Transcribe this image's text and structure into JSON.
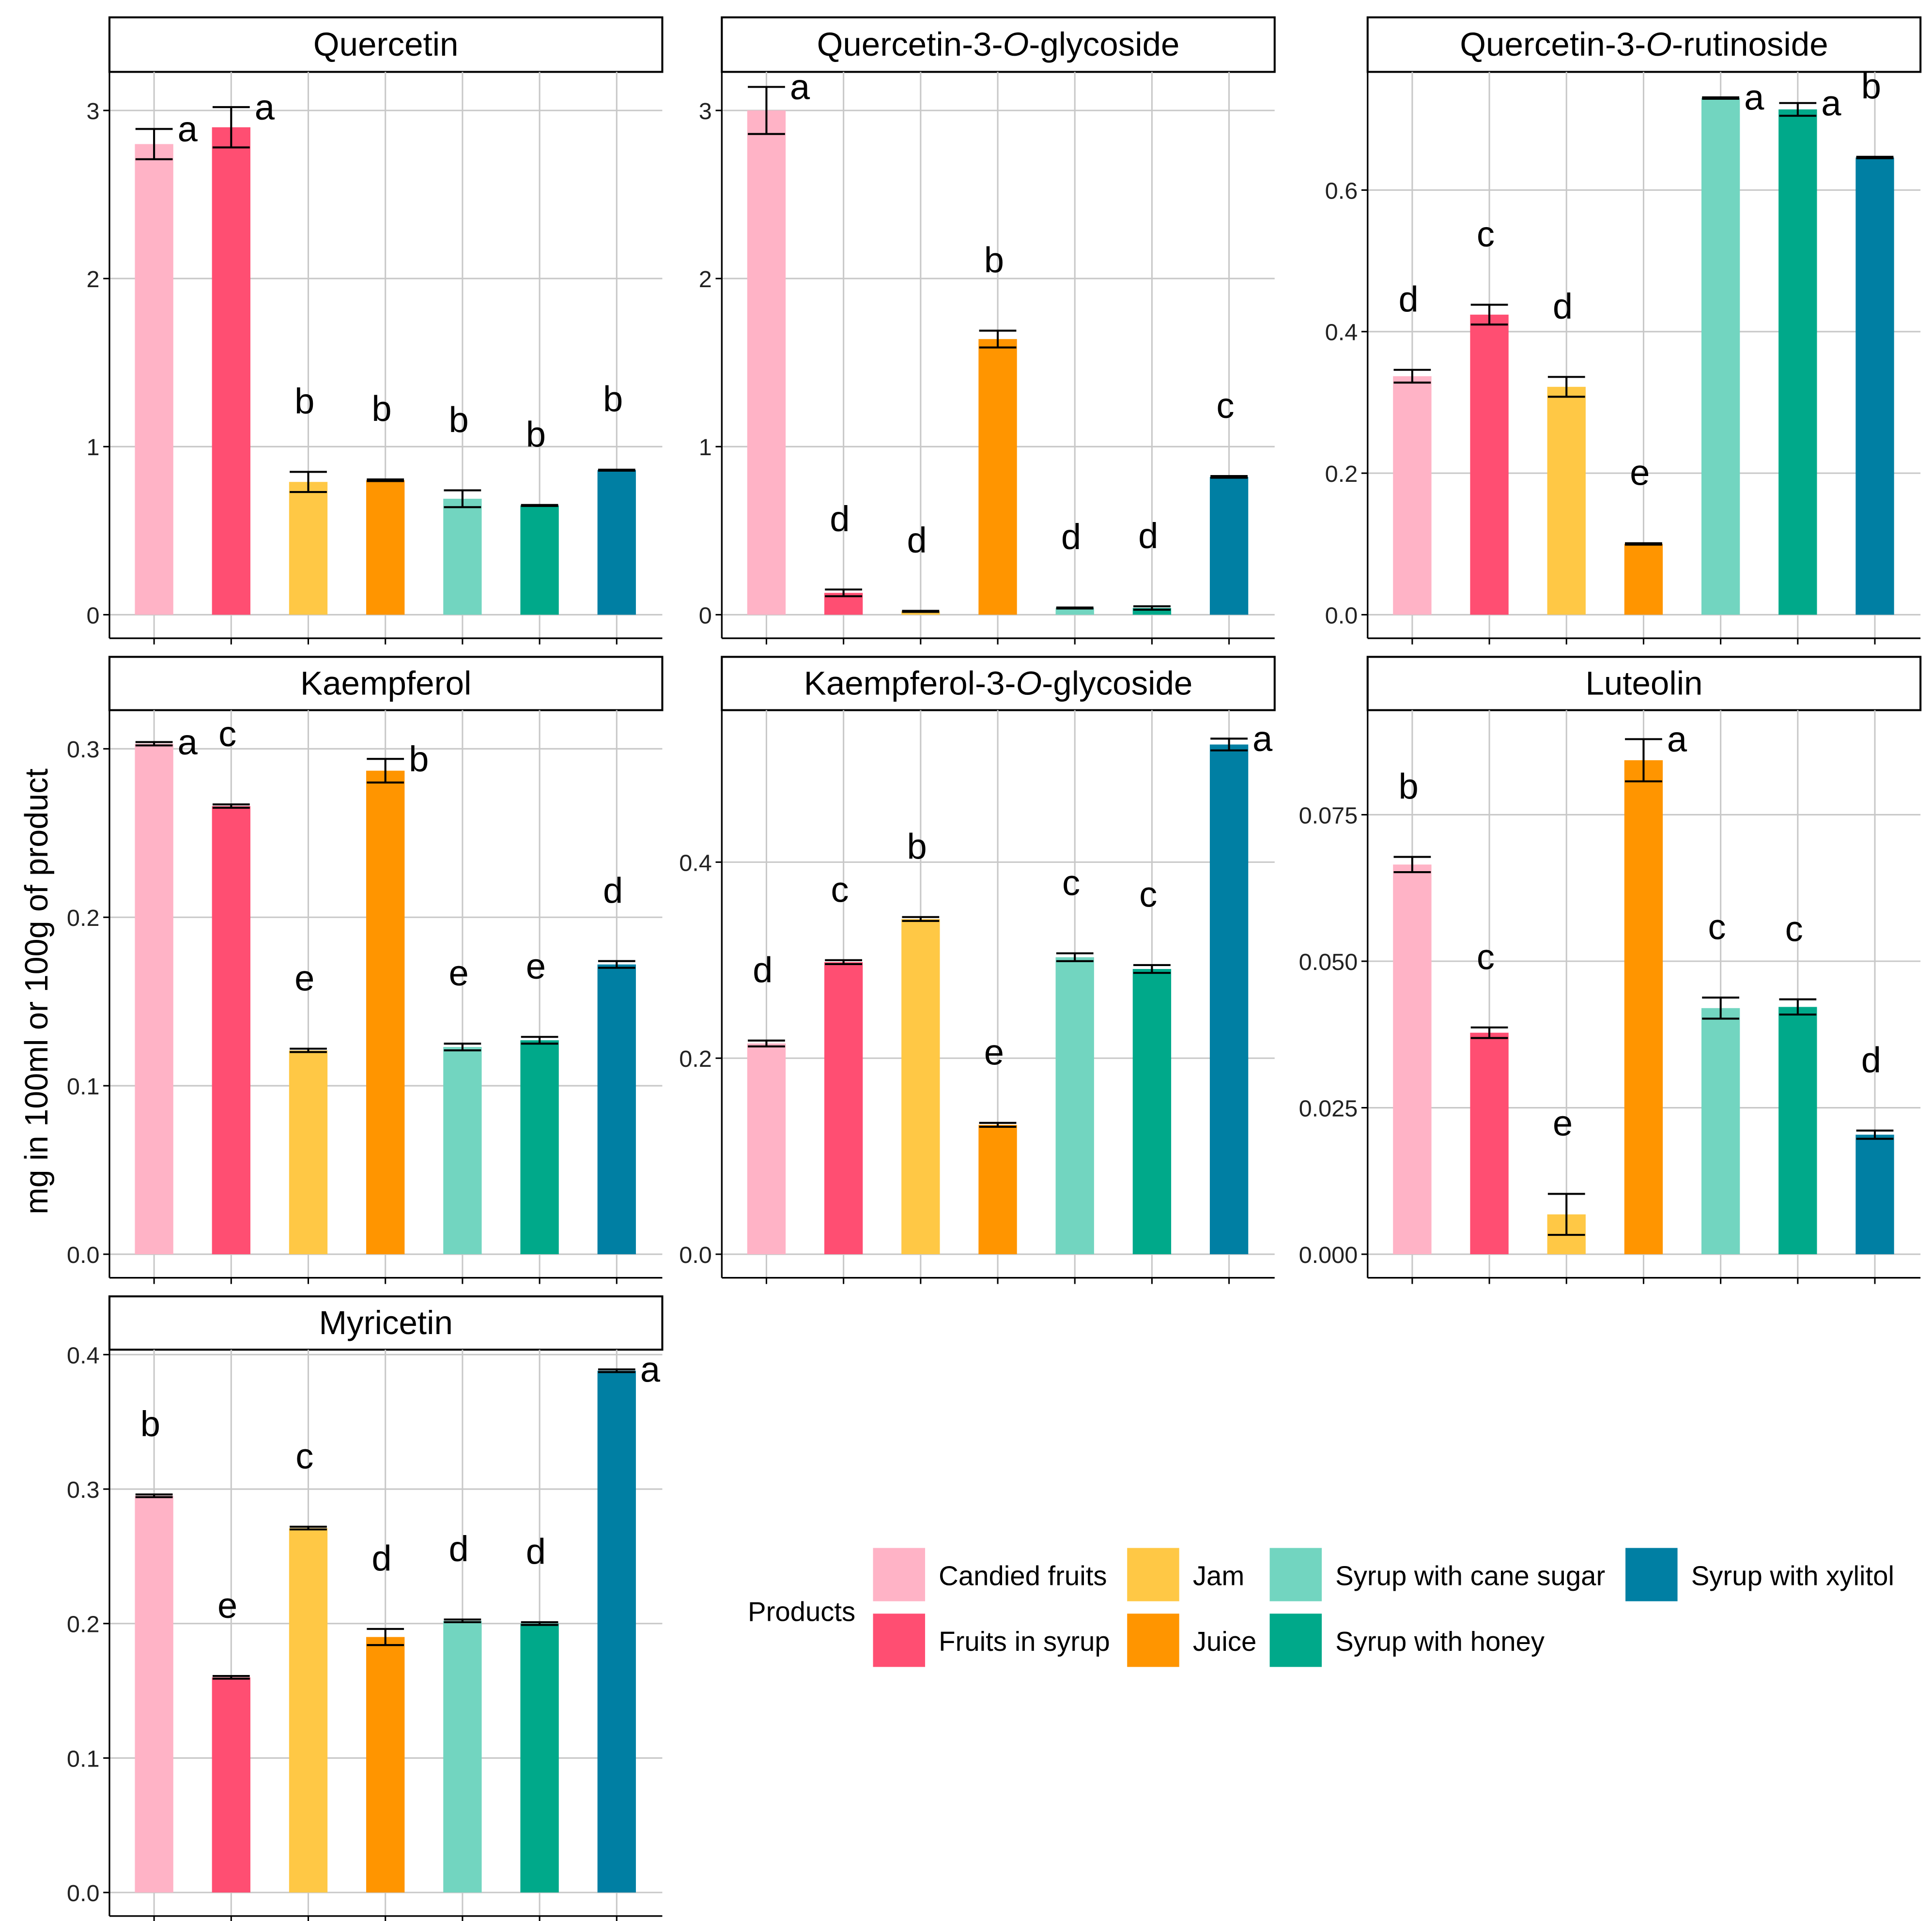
{
  "y_axis_label": "mg in 100ml or 100g of product",
  "legend": {
    "title": "Products",
    "items": [
      {
        "label": "Candied fruits",
        "color": "#FFB3C6"
      },
      {
        "label": "Fruits in syrup",
        "color": "#FF4E72"
      },
      {
        "label": "Jam",
        "color": "#FFC845"
      },
      {
        "label": "Juice",
        "color": "#FF9500"
      },
      {
        "label": "Syrup with cane sugar",
        "color": "#72D5C0"
      },
      {
        "label": "Syrup with honey",
        "color": "#00A98A"
      },
      {
        "label": "Syrup with xylitol",
        "color": "#007FA3"
      }
    ]
  },
  "chart_data": [
    {
      "type": "bar",
      "title": "Quercetin",
      "title_parts": [
        {
          "text": "Quercetin",
          "italic": false
        }
      ],
      "categories": [
        "Candied fruits",
        "Fruits in syrup",
        "Jam",
        "Juice",
        "Syrup with cane sugar",
        "Syrup with honey",
        "Syrup with xylitol"
      ],
      "values": [
        2.8,
        2.9,
        0.79,
        0.8,
        0.69,
        0.65,
        0.86
      ],
      "errors": [
        0.09,
        0.12,
        0.06,
        0.005,
        0.05,
        0.003,
        0.003
      ],
      "letters": [
        "a",
        "a",
        "b",
        "b",
        "b",
        "b",
        "b"
      ],
      "ylim": [
        0,
        3.2
      ],
      "yticks": [
        0,
        1,
        2,
        3
      ],
      "ytick_labels": [
        "0",
        "1",
        "2",
        "3"
      ]
    },
    {
      "type": "bar",
      "title": "Quercetin-3-O-glycoside",
      "title_parts": [
        {
          "text": "Quercetin-3-",
          "italic": false
        },
        {
          "text": "O",
          "italic": true
        },
        {
          "text": "-glycoside",
          "italic": false
        }
      ],
      "categories": [
        "Candied fruits",
        "Fruits in syrup",
        "Jam",
        "Juice",
        "Syrup with cane sugar",
        "Syrup with honey",
        "Syrup with xylitol"
      ],
      "values": [
        3.0,
        0.13,
        0.02,
        1.64,
        0.04,
        0.04,
        0.82
      ],
      "errors": [
        0.14,
        0.02,
        0.003,
        0.05,
        0.003,
        0.01,
        0.005
      ],
      "letters": [
        "a",
        "d",
        "d",
        "b",
        "d",
        "d",
        "c"
      ],
      "ylim": [
        0,
        3.2
      ],
      "yticks": [
        0,
        1,
        2,
        3
      ],
      "ytick_labels": [
        "0",
        "1",
        "2",
        "3"
      ]
    },
    {
      "type": "bar",
      "title": "Quercetin-3-O-rutinoside",
      "title_parts": [
        {
          "text": "Quercetin-3-",
          "italic": false
        },
        {
          "text": "O",
          "italic": true
        },
        {
          "text": "-rutinoside",
          "italic": false
        }
      ],
      "categories": [
        "Candied fruits",
        "Fruits in syrup",
        "Jam",
        "Juice",
        "Syrup with cane sugar",
        "Syrup with honey",
        "Syrup with xylitol"
      ],
      "values": [
        0.337,
        0.424,
        0.322,
        0.1,
        0.73,
        0.714,
        0.646
      ],
      "errors": [
        0.009,
        0.014,
        0.014,
        0.001,
        0.001,
        0.009,
        0.001
      ],
      "letters": [
        "d",
        "c",
        "d",
        "e",
        "a",
        "a",
        "b"
      ],
      "ylim": [
        0,
        0.76
      ],
      "yticks": [
        0,
        0.2,
        0.4,
        0.6
      ],
      "ytick_labels": [
        "0.0",
        "0.2",
        "0.4",
        "0.6"
      ]
    },
    {
      "type": "bar",
      "title": "Kaempferol",
      "title_parts": [
        {
          "text": "Kaempferol",
          "italic": false
        }
      ],
      "categories": [
        "Candied fruits",
        "Fruits in syrup",
        "Jam",
        "Juice",
        "Syrup with cane sugar",
        "Syrup with honey",
        "Syrup with xylitol"
      ],
      "values": [
        0.303,
        0.266,
        0.121,
        0.287,
        0.123,
        0.127,
        0.172
      ],
      "errors": [
        0.001,
        0.001,
        0.001,
        0.007,
        0.002,
        0.002,
        0.002
      ],
      "letters": [
        "a",
        "c",
        "e",
        "b",
        "e",
        "e",
        "d"
      ],
      "ylim": [
        0,
        0.32
      ],
      "yticks": [
        0,
        0.1,
        0.2,
        0.3
      ],
      "ytick_labels": [
        "0.0",
        "0.1",
        "0.2",
        "0.3"
      ]
    },
    {
      "type": "bar",
      "title": "Kaempferol-3-O-glycoside",
      "title_parts": [
        {
          "text": "Kaempferol-3-",
          "italic": false
        },
        {
          "text": "O",
          "italic": true
        },
        {
          "text": "-glycoside",
          "italic": false
        }
      ],
      "categories": [
        "Candied fruits",
        "Fruits in syrup",
        "Jam",
        "Juice",
        "Syrup with cane sugar",
        "Syrup with honey",
        "Syrup with xylitol"
      ],
      "values": [
        0.215,
        0.298,
        0.342,
        0.132,
        0.303,
        0.291,
        0.52
      ],
      "errors": [
        0.003,
        0.002,
        0.002,
        0.002,
        0.004,
        0.004,
        0.006
      ],
      "letters": [
        "d",
        "c",
        "b",
        "e",
        "c",
        "c",
        "a"
      ],
      "ylim": [
        0,
        0.55
      ],
      "yticks": [
        0,
        0.2,
        0.4
      ],
      "ytick_labels": [
        "0.0",
        "0.2",
        "0.4"
      ]
    },
    {
      "type": "bar",
      "title": "Luteolin",
      "title_parts": [
        {
          "text": "Luteolin",
          "italic": false
        }
      ],
      "categories": [
        "Candied fruits",
        "Fruits in syrup",
        "Jam",
        "Juice",
        "Syrup with cane sugar",
        "Syrup with honey",
        "Syrup with xylitol"
      ],
      "values": [
        0.0665,
        0.0378,
        0.0068,
        0.0843,
        0.042,
        0.0422,
        0.0204
      ],
      "errors": [
        0.0013,
        0.0009,
        0.0035,
        0.0036,
        0.0018,
        0.0013,
        0.0007
      ],
      "letters": [
        "b",
        "c",
        "e",
        "a",
        "c",
        "c",
        "d"
      ],
      "ylim": [
        0,
        0.092
      ],
      "yticks": [
        0,
        0.025,
        0.05,
        0.075
      ],
      "ytick_labels": [
        "0.000",
        "0.025",
        "0.050",
        "0.075"
      ]
    },
    {
      "type": "bar",
      "title": "Myricetin",
      "title_parts": [
        {
          "text": "Myricetin",
          "italic": false
        }
      ],
      "categories": [
        "Candied fruits",
        "Fruits in syrup",
        "Jam",
        "Juice",
        "Syrup with cane sugar",
        "Syrup with honey",
        "Syrup with xylitol"
      ],
      "values": [
        0.295,
        0.16,
        0.271,
        0.19,
        0.202,
        0.2,
        0.388
      ],
      "errors": [
        0.001,
        0.001,
        0.001,
        0.006,
        0.001,
        0.001,
        0.001
      ],
      "letters": [
        "b",
        "e",
        "c",
        "d",
        "d",
        "d",
        "a"
      ],
      "ylim": [
        0,
        0.4
      ],
      "yticks": [
        0,
        0.1,
        0.2,
        0.3,
        0.4
      ],
      "ytick_labels": [
        "0.0",
        "0.1",
        "0.2",
        "0.3",
        "0.4"
      ]
    }
  ]
}
